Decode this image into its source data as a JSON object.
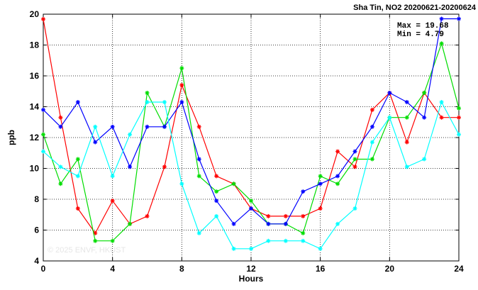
{
  "chart_data": {
    "type": "line",
    "title": "Sha Tin, NO2 20200621-20200624",
    "xlabel": "Hours",
    "ylabel": "ppb",
    "xlim": [
      0,
      24
    ],
    "ylim": [
      4,
      20
    ],
    "xticks": [
      0,
      4,
      8,
      12,
      16,
      20,
      24
    ],
    "yticks": [
      4,
      6,
      8,
      10,
      12,
      14,
      16,
      18,
      20
    ],
    "grid": true,
    "stats": {
      "max": "Max = 19.68",
      "min": "Min =  4.79"
    },
    "watermark": "© 2025  ENVF, HKUST",
    "x": [
      0,
      1,
      2,
      3,
      4,
      5,
      6,
      7,
      8,
      9,
      10,
      11,
      12,
      13,
      14,
      15,
      16,
      17,
      18,
      19,
      20,
      21,
      22,
      23,
      24
    ],
    "series": [
      {
        "color": "#ff0000",
        "values": [
          19.68,
          13.3,
          7.4,
          5.8,
          7.9,
          6.4,
          6.9,
          10.1,
          15.4,
          12.7,
          9.5,
          9.0,
          7.4,
          6.9,
          6.9,
          6.9,
          7.4,
          11.1,
          10.1,
          13.8,
          14.9,
          11.7,
          14.9,
          13.3,
          13.3
        ]
      },
      {
        "color": "#00dd00",
        "values": [
          12.2,
          9.0,
          10.6,
          5.3,
          5.3,
          6.4,
          14.9,
          12.7,
          16.5,
          9.5,
          8.5,
          9.0,
          7.9,
          6.4,
          6.4,
          5.8,
          9.5,
          9.0,
          10.6,
          10.6,
          13.3,
          13.3,
          14.9,
          18.1,
          13.9
        ]
      },
      {
        "color": "#0000ff",
        "values": [
          13.8,
          12.7,
          14.3,
          11.7,
          12.7,
          10.1,
          12.7,
          12.7,
          14.3,
          10.6,
          7.9,
          6.4,
          7.4,
          6.4,
          6.4,
          8.5,
          9.0,
          9.5,
          11.1,
          12.7,
          14.9,
          14.3,
          13.3,
          19.7,
          19.7
        ]
      },
      {
        "color": "#00ffff",
        "values": [
          11.1,
          10.1,
          9.5,
          12.7,
          9.5,
          12.2,
          14.3,
          14.3,
          9.0,
          5.8,
          6.9,
          4.79,
          4.79,
          5.3,
          5.3,
          5.3,
          4.79,
          6.4,
          7.4,
          11.7,
          13.3,
          10.1,
          10.6,
          14.3,
          12.2
        ]
      }
    ]
  }
}
